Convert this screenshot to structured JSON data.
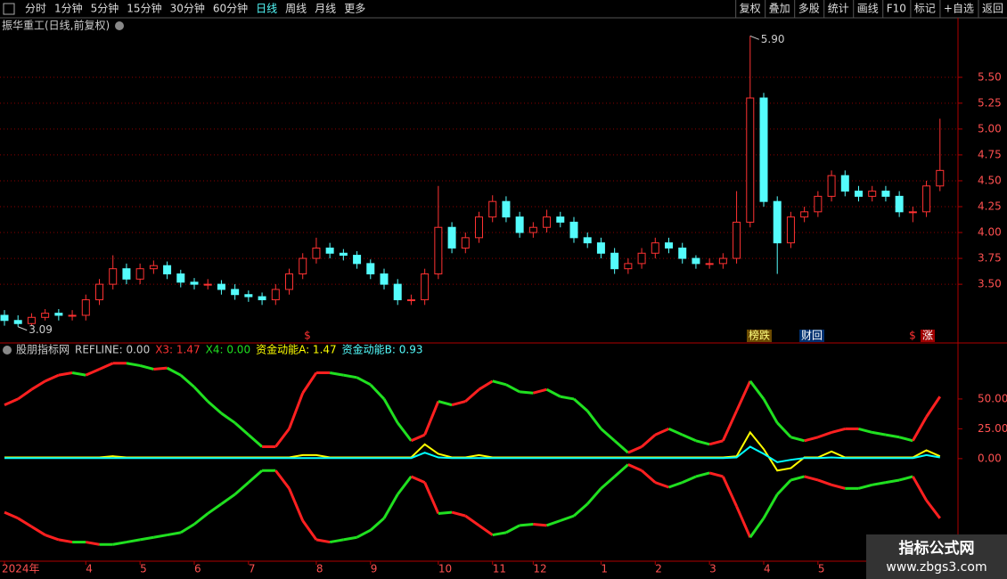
{
  "toolbar": {
    "tabs": [
      "分时",
      "1分钟",
      "5分钟",
      "15分钟",
      "30分钟",
      "60分钟",
      "日线",
      "周线",
      "月线",
      "更多"
    ],
    "actions": [
      "复权",
      "叠加",
      "多股",
      "统计",
      "画线",
      "F10",
      "标记",
      "+自选",
      "返回"
    ]
  },
  "watermark": {
    "title": "指标公式网",
    "url": "www.zbgs3.com"
  },
  "chart_data": [
    {
      "type": "candlestick",
      "title": "振华重工(日线,前复权)",
      "categories": [
        "2024年",
        null,
        null,
        null,
        null,
        null,
        "4",
        null,
        null,
        null,
        "5",
        null,
        null,
        null,
        "6",
        null,
        null,
        null,
        "7",
        null,
        null,
        null,
        null,
        "8",
        null,
        null,
        null,
        "9",
        null,
        null,
        null,
        null,
        "10",
        null,
        null,
        null,
        "11",
        null,
        null,
        "12",
        null,
        null,
        null,
        null,
        "1",
        null,
        null,
        null,
        "2",
        null,
        null,
        null,
        "3",
        null,
        null,
        null,
        "4",
        null,
        null,
        null,
        "5",
        null,
        null,
        null,
        null,
        null,
        null,
        null,
        null,
        null
      ],
      "open": [
        3.2,
        3.15,
        3.12,
        3.18,
        3.22,
        3.2,
        3.2,
        3.35,
        3.5,
        3.65,
        3.55,
        3.65,
        3.68,
        3.6,
        3.52,
        3.5,
        3.5,
        3.45,
        3.4,
        3.38,
        3.35,
        3.45,
        3.6,
        3.75,
        3.85,
        3.8,
        3.78,
        3.7,
        3.6,
        3.5,
        3.35,
        3.35,
        3.6,
        4.05,
        3.85,
        3.95,
        4.15,
        4.3,
        4.15,
        4.0,
        4.05,
        4.15,
        4.1,
        3.95,
        3.9,
        3.8,
        3.65,
        3.7,
        3.8,
        3.9,
        3.85,
        3.75,
        3.7,
        3.7,
        3.75,
        4.1,
        5.3,
        4.3,
        3.9,
        4.15,
        4.2,
        4.35,
        4.55,
        4.4,
        4.35,
        4.4,
        4.35,
        4.2,
        4.2,
        4.45
      ],
      "high": [
        3.25,
        3.2,
        3.22,
        3.26,
        3.26,
        3.25,
        3.4,
        3.55,
        3.78,
        3.7,
        3.7,
        3.73,
        3.72,
        3.64,
        3.56,
        3.55,
        3.54,
        3.5,
        3.44,
        3.42,
        3.5,
        3.65,
        3.8,
        3.95,
        3.9,
        3.84,
        3.82,
        3.74,
        3.65,
        3.55,
        3.4,
        3.65,
        4.45,
        4.1,
        4.0,
        4.2,
        4.36,
        4.35,
        4.2,
        4.1,
        4.22,
        4.2,
        4.15,
        4.0,
        3.95,
        3.85,
        3.75,
        3.85,
        3.95,
        3.95,
        3.9,
        3.78,
        3.75,
        3.8,
        4.4,
        5.9,
        5.35,
        4.35,
        4.2,
        4.25,
        4.4,
        4.6,
        4.6,
        4.45,
        4.45,
        4.45,
        4.4,
        4.25,
        4.5,
        5.1
      ],
      "low": [
        3.1,
        3.09,
        3.1,
        3.15,
        3.15,
        3.15,
        3.15,
        3.3,
        3.45,
        3.5,
        3.5,
        3.6,
        3.55,
        3.47,
        3.45,
        3.45,
        3.4,
        3.35,
        3.33,
        3.3,
        3.3,
        3.4,
        3.55,
        3.7,
        3.75,
        3.73,
        3.65,
        3.55,
        3.45,
        3.3,
        3.3,
        3.3,
        3.55,
        3.8,
        3.8,
        3.9,
        4.1,
        4.1,
        3.95,
        3.95,
        4.0,
        4.05,
        3.9,
        3.85,
        3.75,
        3.6,
        3.6,
        3.65,
        3.75,
        3.8,
        3.7,
        3.65,
        3.65,
        3.65,
        3.7,
        4.05,
        4.25,
        3.6,
        3.85,
        4.1,
        4.15,
        4.3,
        4.35,
        4.3,
        4.3,
        4.3,
        4.15,
        4.1,
        4.15,
        4.4
      ],
      "close": [
        3.15,
        3.12,
        3.18,
        3.22,
        3.2,
        3.2,
        3.35,
        3.5,
        3.65,
        3.55,
        3.65,
        3.68,
        3.6,
        3.52,
        3.5,
        3.5,
        3.45,
        3.4,
        3.38,
        3.35,
        3.45,
        3.6,
        3.75,
        3.85,
        3.8,
        3.78,
        3.7,
        3.6,
        3.5,
        3.35,
        3.35,
        3.6,
        4.05,
        3.85,
        3.95,
        4.15,
        4.3,
        4.15,
        4.0,
        4.05,
        4.15,
        4.1,
        3.95,
        3.9,
        3.8,
        3.65,
        3.7,
        3.8,
        3.9,
        3.85,
        3.75,
        3.7,
        3.7,
        3.75,
        4.1,
        5.3,
        4.3,
        3.9,
        4.15,
        4.2,
        4.35,
        4.55,
        4.4,
        4.35,
        4.4,
        4.35,
        4.2,
        4.2,
        4.45,
        4.6
      ],
      "up_color": "#ff3232",
      "down_color": "#54fcfc",
      "grid": true,
      "ylim": [
        2.95,
        5.92
      ],
      "yticks": [
        {
          "value": 3.5,
          "label": "3.50"
        },
        {
          "value": 3.75,
          "label": "3.75"
        },
        {
          "value": 4.0,
          "label": "4.00"
        },
        {
          "value": 4.25,
          "label": "4.25"
        },
        {
          "value": 4.5,
          "label": "4.50"
        },
        {
          "value": 4.75,
          "label": "4.75"
        },
        {
          "value": 5.0,
          "label": "5.00"
        },
        {
          "value": 5.25,
          "label": "5.25"
        },
        {
          "value": 5.5,
          "label": "5.50"
        }
      ],
      "annotations": [
        {
          "value": 5.9,
          "label": "5.90"
        },
        {
          "value": 3.09,
          "label": "3.09"
        }
      ],
      "event_tags": [
        "$",
        "榜跌",
        "财回",
        "$",
        "涨"
      ]
    },
    {
      "type": "indicator",
      "legend_texts": [
        "股朋指标网",
        "REFLINE: 0.00",
        "X3: 1.47",
        "X4: 0.00",
        "资金动能A: 1.47",
        "资金动能B: 0.93"
      ],
      "ylim": [
        -86,
        97
      ],
      "yticks": [
        {
          "value": 0,
          "label": "0.00"
        },
        {
          "value": 25,
          "label": "25.00"
        },
        {
          "value": 50,
          "label": "50.00"
        }
      ],
      "up_color": "#ff2020",
      "down_color": "#20e020",
      "x3_color": "#ffff00",
      "b_color": "#00ffff",
      "upper_values": [
        45,
        50,
        58,
        65,
        70,
        72,
        70,
        75,
        80,
        80,
        78,
        75,
        76,
        70,
        60,
        48,
        38,
        30,
        20,
        10,
        10,
        25,
        55,
        72,
        72,
        70,
        68,
        62,
        50,
        30,
        15,
        20,
        48,
        45,
        48,
        58,
        65,
        62,
        56,
        55,
        58,
        52,
        50,
        40,
        25,
        15,
        5,
        10,
        20,
        25,
        20,
        15,
        12,
        15,
        40,
        65,
        50,
        30,
        18,
        15,
        18,
        22,
        25,
        25,
        22,
        20,
        18,
        15,
        35,
        52
      ],
      "lower_values": [
        -45,
        -50,
        -57,
        -64,
        -68,
        -70,
        -70,
        -72,
        -72,
        -70,
        -68,
        -66,
        -64,
        -62,
        -55,
        -46,
        -38,
        -30,
        -20,
        -10,
        -10,
        -25,
        -52,
        -68,
        -70,
        -68,
        -66,
        -60,
        -50,
        -30,
        -15,
        -20,
        -46,
        -45,
        -48,
        -56,
        -64,
        -62,
        -56,
        -55,
        -56,
        -52,
        -48,
        -38,
        -25,
        -15,
        -5,
        -10,
        -20,
        -24,
        -20,
        -15,
        -12,
        -15,
        -40,
        -66,
        -50,
        -30,
        -18,
        -15,
        -18,
        -22,
        -25,
        -25,
        -22,
        -20,
        -18,
        -15,
        -35,
        -50
      ],
      "x3_values": [
        1,
        1,
        1,
        1,
        1,
        1,
        1,
        1,
        2,
        1,
        1,
        1,
        1,
        1,
        1,
        1,
        1,
        1,
        1,
        1,
        1,
        1,
        3,
        3,
        1,
        1,
        1,
        1,
        1,
        1,
        1,
        12,
        4,
        1,
        1,
        3,
        1,
        1,
        1,
        1,
        1,
        1,
        1,
        1,
        1,
        1,
        1,
        1,
        1,
        1,
        1,
        1,
        1,
        1,
        2,
        22,
        8,
        -10,
        -8,
        1,
        1,
        6,
        1,
        1,
        1,
        1,
        1,
        1,
        7,
        2
      ],
      "b_values": [
        0.5,
        0.5,
        0.5,
        0.5,
        0.5,
        0.5,
        0.5,
        0.5,
        0.5,
        0.5,
        0.5,
        0.5,
        0.5,
        0.5,
        0.5,
        0.5,
        0.5,
        0.5,
        0.5,
        0.5,
        0.5,
        0.5,
        0.5,
        0.5,
        0.5,
        0.5,
        0.5,
        0.5,
        0.5,
        0.5,
        0.5,
        5,
        1,
        0.5,
        0.5,
        0.5,
        0.5,
        0.5,
        0.5,
        0.5,
        0.5,
        0.5,
        0.5,
        0.5,
        0.5,
        0.5,
        0.5,
        0.5,
        0.5,
        0.5,
        0.5,
        0.5,
        0.5,
        0.5,
        1,
        10,
        4,
        -3,
        -1,
        0.5,
        0.5,
        1,
        0.5,
        0.5,
        0.5,
        0.5,
        0.5,
        0.5,
        3,
        1
      ]
    }
  ]
}
